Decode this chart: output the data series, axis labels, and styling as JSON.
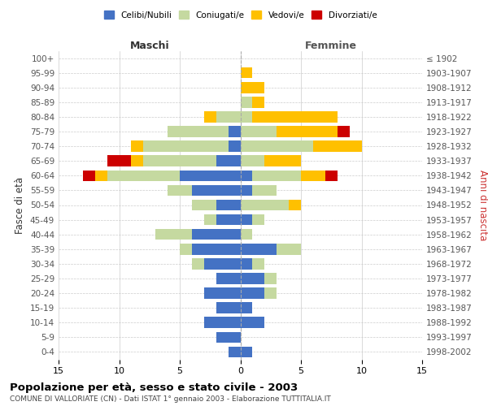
{
  "age_groups_bottom_to_top": [
    "0-4",
    "5-9",
    "10-14",
    "15-19",
    "20-24",
    "25-29",
    "30-34",
    "35-39",
    "40-44",
    "45-49",
    "50-54",
    "55-59",
    "60-64",
    "65-69",
    "70-74",
    "75-79",
    "80-84",
    "85-89",
    "90-94",
    "95-99",
    "100+"
  ],
  "birth_years_bottom_to_top": [
    "1998-2002",
    "1993-1997",
    "1988-1992",
    "1983-1987",
    "1978-1982",
    "1973-1977",
    "1968-1972",
    "1963-1967",
    "1958-1962",
    "1953-1957",
    "1948-1952",
    "1943-1947",
    "1938-1942",
    "1933-1937",
    "1928-1932",
    "1923-1927",
    "1918-1922",
    "1913-1917",
    "1908-1912",
    "1903-1907",
    "≤ 1902"
  ],
  "male": {
    "celibi": [
      1,
      2,
      3,
      2,
      3,
      2,
      3,
      4,
      4,
      2,
      2,
      4,
      5,
      2,
      1,
      1,
      0,
      0,
      0,
      0,
      0
    ],
    "coniugati": [
      0,
      0,
      0,
      0,
      0,
      0,
      1,
      1,
      3,
      1,
      2,
      2,
      6,
      6,
      7,
      5,
      2,
      0,
      0,
      0,
      0
    ],
    "vedovi": [
      0,
      0,
      0,
      0,
      0,
      0,
      0,
      0,
      0,
      0,
      0,
      0,
      1,
      1,
      1,
      0,
      1,
      0,
      0,
      0,
      0
    ],
    "divorziati": [
      0,
      0,
      0,
      0,
      0,
      0,
      0,
      0,
      0,
      0,
      0,
      0,
      1,
      2,
      0,
      0,
      0,
      0,
      0,
      0,
      0
    ]
  },
  "female": {
    "nubili": [
      1,
      0,
      2,
      1,
      2,
      2,
      1,
      3,
      0,
      1,
      0,
      1,
      1,
      0,
      0,
      0,
      0,
      0,
      0,
      0,
      0
    ],
    "coniugate": [
      0,
      0,
      0,
      0,
      1,
      1,
      1,
      2,
      1,
      1,
      4,
      2,
      4,
      2,
      6,
      3,
      1,
      1,
      0,
      0,
      0
    ],
    "vedove": [
      0,
      0,
      0,
      0,
      0,
      0,
      0,
      0,
      0,
      0,
      1,
      0,
      2,
      3,
      4,
      5,
      7,
      1,
      2,
      1,
      0
    ],
    "divorziate": [
      0,
      0,
      0,
      0,
      0,
      0,
      0,
      0,
      0,
      0,
      0,
      0,
      1,
      0,
      0,
      1,
      0,
      0,
      0,
      0,
      0
    ]
  },
  "colors": {
    "celibi_nubili": "#4472c4",
    "coniugati": "#c5d9a0",
    "vedovi": "#ffc000",
    "divorziati": "#cc0000"
  },
  "xlim": 15,
  "title": "Popolazione per età, sesso e stato civile - 2003",
  "subtitle": "COMUNE DI VALLORIATE (CN) - Dati ISTAT 1° gennaio 2003 - Elaborazione TUTTITALIA.IT",
  "ylabel_left": "Fasce di età",
  "ylabel_right": "Anni di nascita",
  "xlabel_male": "Maschi",
  "xlabel_female": "Femmine",
  "legend_labels": [
    "Celibi/Nubili",
    "Coniugati/e",
    "Vedovi/e",
    "Divorziati/e"
  ],
  "background_color": "#ffffff",
  "male_label_color": "#333333",
  "female_label_color": "#333333"
}
